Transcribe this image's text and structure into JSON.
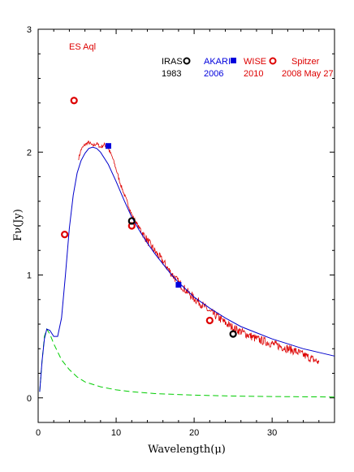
{
  "chart_data": {
    "type": "scatter",
    "title": "ES Aql",
    "xlabel": "Wavelength(μ)",
    "ylabel": "Fν(Jy)",
    "xlim": [
      0,
      38
    ],
    "ylim": [
      -0.2,
      3
    ],
    "x_ticks": [
      0,
      10,
      20,
      30
    ],
    "y_ticks": [
      0,
      1,
      2,
      3
    ],
    "colors": {
      "iras": "#000000",
      "akari": "#0000dd",
      "wise": "#dd0000",
      "spitzer": "#dd0000",
      "model_total": "#0000cc",
      "model_photosphere": "#00cc00"
    },
    "legend": [
      {
        "name": "IRAS",
        "year": "1983",
        "marker": "open-circle",
        "color": "#000000"
      },
      {
        "name": "AKARI",
        "year": "2006",
        "marker": "filled-square",
        "color": "#0000dd"
      },
      {
        "name": "WISE",
        "year": "2010",
        "marker": "open-circle",
        "color": "#dd0000"
      },
      {
        "name": "Spitzer",
        "year": "2008 May 27",
        "marker": "line",
        "color": "#dd0000"
      }
    ],
    "series": [
      {
        "id": "iras",
        "points": [
          [
            12,
            1.44
          ],
          [
            25,
            0.52
          ]
        ]
      },
      {
        "id": "akari",
        "points": [
          [
            9,
            2.05
          ],
          [
            18,
            0.92
          ]
        ]
      },
      {
        "id": "wise",
        "points": [
          [
            3.4,
            1.33
          ],
          [
            4.6,
            2.42
          ],
          [
            12,
            1.4
          ],
          [
            22,
            0.63
          ]
        ]
      },
      {
        "id": "spitzer",
        "points": [
          [
            5.2,
            1.95
          ],
          [
            5.5,
            2.02
          ],
          [
            6.0,
            2.06
          ],
          [
            6.5,
            2.08
          ],
          [
            7.0,
            2.05
          ],
          [
            7.5,
            2.07
          ],
          [
            8.0,
            2.04
          ],
          [
            8.5,
            2.06
          ],
          [
            9.0,
            2.03
          ],
          [
            9.5,
            1.96
          ],
          [
            10.0,
            1.86
          ],
          [
            10.5,
            1.75
          ],
          [
            11.0,
            1.66
          ],
          [
            11.5,
            1.58
          ],
          [
            12.0,
            1.49
          ],
          [
            13.0,
            1.38
          ],
          [
            14.0,
            1.28
          ],
          [
            15.0,
            1.19
          ],
          [
            16.0,
            1.11
          ],
          [
            17.0,
            1.02
          ],
          [
            18.0,
            0.94
          ],
          [
            19.0,
            0.87
          ],
          [
            20.0,
            0.81
          ],
          [
            21.0,
            0.76
          ],
          [
            22.0,
            0.7
          ],
          [
            23.0,
            0.66
          ],
          [
            24.0,
            0.61
          ],
          [
            25.0,
            0.57
          ],
          [
            26.0,
            0.54
          ],
          [
            27.0,
            0.51
          ],
          [
            28.0,
            0.48
          ],
          [
            29.0,
            0.46
          ],
          [
            30.0,
            0.44
          ],
          [
            31.0,
            0.42
          ],
          [
            32.0,
            0.4
          ],
          [
            33.0,
            0.38
          ],
          [
            34.0,
            0.35
          ],
          [
            35.0,
            0.32
          ],
          [
            36.0,
            0.29
          ]
        ]
      },
      {
        "id": "model_total",
        "points": [
          [
            0.2,
            0.05
          ],
          [
            0.5,
            0.3
          ],
          [
            0.8,
            0.48
          ],
          [
            1.1,
            0.56
          ],
          [
            1.5,
            0.55
          ],
          [
            2.0,
            0.5
          ],
          [
            2.5,
            0.5
          ],
          [
            3.0,
            0.65
          ],
          [
            3.5,
            1.0
          ],
          [
            4.0,
            1.38
          ],
          [
            4.5,
            1.65
          ],
          [
            5.0,
            1.83
          ],
          [
            5.5,
            1.93
          ],
          [
            6.0,
            1.99
          ],
          [
            6.5,
            2.03
          ],
          [
            7.0,
            2.04
          ],
          [
            7.5,
            2.03
          ],
          [
            8.0,
            2.0
          ],
          [
            9.0,
            1.9
          ],
          [
            10.0,
            1.76
          ],
          [
            11.0,
            1.61
          ],
          [
            12.0,
            1.47
          ],
          [
            13.0,
            1.36
          ],
          [
            14.0,
            1.26
          ],
          [
            15.0,
            1.17
          ],
          [
            16.0,
            1.09
          ],
          [
            17.0,
            1.01
          ],
          [
            18.0,
            0.94
          ],
          [
            19.0,
            0.88
          ],
          [
            20.0,
            0.82
          ],
          [
            22.0,
            0.73
          ],
          [
            24.0,
            0.65
          ],
          [
            26.0,
            0.58
          ],
          [
            28.0,
            0.53
          ],
          [
            30.0,
            0.48
          ],
          [
            32.0,
            0.44
          ],
          [
            34.0,
            0.4
          ],
          [
            36.0,
            0.37
          ],
          [
            38.0,
            0.34
          ]
        ]
      },
      {
        "id": "model_photosphere",
        "points": [
          [
            0.2,
            0.05
          ],
          [
            0.5,
            0.3
          ],
          [
            0.8,
            0.5
          ],
          [
            1.1,
            0.56
          ],
          [
            1.5,
            0.52
          ],
          [
            2.0,
            0.44
          ],
          [
            3.0,
            0.31
          ],
          [
            4.0,
            0.23
          ],
          [
            5.0,
            0.17
          ],
          [
            6.0,
            0.13
          ],
          [
            8.0,
            0.09
          ],
          [
            10.0,
            0.065
          ],
          [
            12.0,
            0.05
          ],
          [
            15.0,
            0.035
          ],
          [
            20.0,
            0.022
          ],
          [
            25.0,
            0.015
          ],
          [
            30.0,
            0.011
          ],
          [
            38.0,
            0.007
          ]
        ]
      }
    ]
  }
}
